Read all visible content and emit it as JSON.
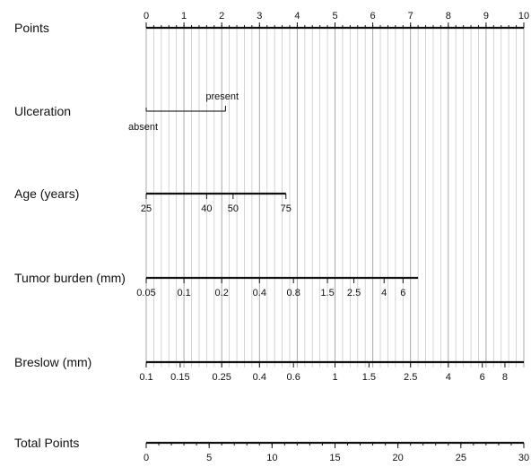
{
  "chart_data": {
    "type": "nomogram",
    "rows": [
      {
        "label": "Points",
        "kind": "scale",
        "ticks": [
          {
            "t": 0,
            "label": "0"
          },
          {
            "t": 1,
            "label": "1"
          },
          {
            "t": 2,
            "label": "2"
          },
          {
            "t": 3,
            "label": "3"
          },
          {
            "t": 4,
            "label": "4"
          },
          {
            "t": 5,
            "label": "5"
          },
          {
            "t": 6,
            "label": "6"
          },
          {
            "t": 7,
            "label": "7"
          },
          {
            "t": 8,
            "label": "8"
          },
          {
            "t": 9,
            "label": "9"
          },
          {
            "t": 10,
            "label": "10"
          }
        ],
        "minor_step": 0.2,
        "range": [
          0,
          10
        ],
        "label_position": "above"
      },
      {
        "label": "Ulceration",
        "kind": "categorical",
        "levels": [
          {
            "t": 0,
            "label": "absent"
          },
          {
            "t": 2.1,
            "label": "present"
          }
        ],
        "range": [
          0,
          2.1
        ]
      },
      {
        "label": "Age (years)",
        "kind": "scale",
        "ticks": [
          {
            "t": 0,
            "label": "25"
          },
          {
            "t": 1.6,
            "label": "40"
          },
          {
            "t": 2.3,
            "label": "50"
          },
          {
            "t": 3.7,
            "label": "75"
          }
        ],
        "range": [
          0,
          3.7
        ],
        "label_position": "below"
      },
      {
        "label": "Tumor burden (mm)",
        "kind": "scale",
        "ticks": [
          {
            "t": 0,
            "label": "0.05"
          },
          {
            "t": 1,
            "label": "0.1"
          },
          {
            "t": 2,
            "label": "0.2"
          },
          {
            "t": 3,
            "label": "0.4"
          },
          {
            "t": 3.9,
            "label": "0.8"
          },
          {
            "t": 4.8,
            "label": "1.5"
          },
          {
            "t": 5.5,
            "label": "2.5"
          },
          {
            "t": 6.3,
            "label": "4"
          },
          {
            "t": 6.8,
            "label": "6"
          }
        ],
        "range": [
          0,
          7.2
        ],
        "label_position": "below"
      },
      {
        "label": "Breslow (mm)",
        "kind": "scale",
        "ticks": [
          {
            "t": 0,
            "label": "0.1"
          },
          {
            "t": 0.9,
            "label": "0.15"
          },
          {
            "t": 2,
            "label": "0.25"
          },
          {
            "t": 3,
            "label": "0.4"
          },
          {
            "t": 3.9,
            "label": "0.6"
          },
          {
            "t": 5,
            "label": "1"
          },
          {
            "t": 5.9,
            "label": "1.5"
          },
          {
            "t": 7,
            "label": "2.5"
          },
          {
            "t": 8,
            "label": "4"
          },
          {
            "t": 8.9,
            "label": "6"
          },
          {
            "t": 9.5,
            "label": "8"
          }
        ],
        "range": [
          0,
          10
        ],
        "label_position": "below"
      },
      {
        "label": "Total Points",
        "kind": "scale",
        "ticks": [
          {
            "t": 0,
            "label": "0"
          },
          {
            "t": 1.6667,
            "label": "5"
          },
          {
            "t": 3.3333,
            "label": "10"
          },
          {
            "t": 5,
            "label": "15"
          },
          {
            "t": 6.6667,
            "label": "20"
          },
          {
            "t": 8.3333,
            "label": "25"
          },
          {
            "t": 10,
            "label": "30"
          }
        ],
        "minor_step": 0.3333,
        "range": [
          0,
          10
        ],
        "label_position": "below"
      }
    ],
    "grid": true,
    "grid_step": 0.2
  }
}
